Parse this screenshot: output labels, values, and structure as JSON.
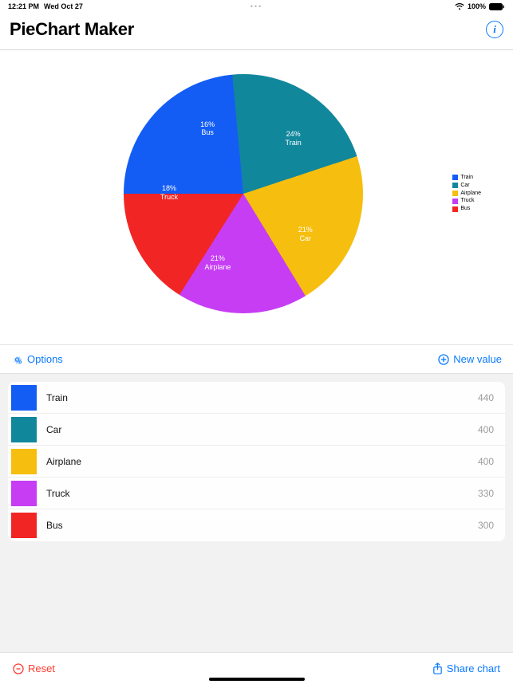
{
  "statusbar": {
    "time": "12:21 PM",
    "date": "Wed Oct 27",
    "battery": "100%"
  },
  "header": {
    "title": "PieChart Maker"
  },
  "chart": {
    "type": "pie",
    "radius": 150,
    "background": "#ffffff",
    "slices": [
      {
        "label": "Train",
        "value": 440,
        "percent": "24%",
        "color": "#135df5"
      },
      {
        "label": "Car",
        "value": 400,
        "percent": "21%",
        "color": "#11879c"
      },
      {
        "label": "Airplane",
        "value": 400,
        "percent": "21%",
        "color": "#f6be0e"
      },
      {
        "label": "Truck",
        "value": 330,
        "percent": "18%",
        "color": "#c63df4"
      },
      {
        "label": "Bus",
        "value": 300,
        "percent": "16%",
        "color": "#f22525"
      }
    ],
    "start_angle_deg": -90
  },
  "legend": {
    "items": [
      {
        "label": "Train",
        "color": "#135df5"
      },
      {
        "label": "Car",
        "color": "#11879c"
      },
      {
        "label": "Airplane",
        "color": "#f6be0e"
      },
      {
        "label": "Truck",
        "color": "#c63df4"
      },
      {
        "label": "Bus",
        "color": "#f22525"
      }
    ]
  },
  "toolbar": {
    "options": "Options",
    "new_value": "New value"
  },
  "list": {
    "rows": [
      {
        "label": "Train",
        "value": "440",
        "color": "#135df5"
      },
      {
        "label": "Car",
        "value": "400",
        "color": "#11879c"
      },
      {
        "label": "Airplane",
        "value": "400",
        "color": "#f6be0e"
      },
      {
        "label": "Truck",
        "value": "330",
        "color": "#c63df4"
      },
      {
        "label": "Bus",
        "value": "300",
        "color": "#f22525"
      }
    ]
  },
  "footer": {
    "reset": "Reset",
    "share": "Share chart"
  },
  "colors": {
    "accent": "#0a7aff",
    "danger": "#ff3b30"
  }
}
